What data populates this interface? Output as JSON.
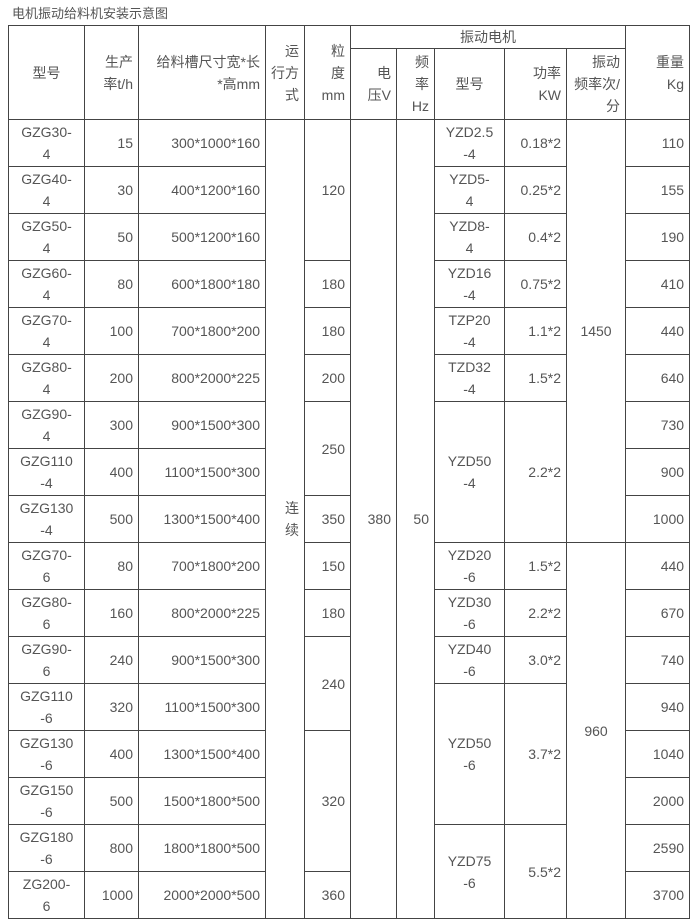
{
  "title": "电机振动给料机安装示意图",
  "header": {
    "model": "型号",
    "capacity": "生产\n率t/h",
    "trough_size": "给料槽尺寸宽*长\n*高mm",
    "operation": "运\n行方\n式",
    "granularity": "粒\n度mm",
    "motor_group": "振动电机",
    "voltage": "电\n压V",
    "frequency": "频\n率Hz",
    "motor_model": "型号",
    "power": "功率\nKW",
    "vib_freq": "振动\n频率次/\n分",
    "weight": "重量\nKg"
  },
  "rows": [
    {
      "model": "GZG30-\n4",
      "capacity": "15",
      "trough_size": "300*1000*160",
      "weight": "110"
    },
    {
      "model": "GZG40-\n4",
      "capacity": "30",
      "trough_size": "400*1200*160",
      "weight": "155"
    },
    {
      "model": "GZG50-\n4",
      "capacity": "50",
      "trough_size": "500*1200*160",
      "weight": "190"
    },
    {
      "model": "GZG60-\n4",
      "capacity": "80",
      "trough_size": "600*1800*180",
      "weight": "410"
    },
    {
      "model": "GZG70-\n4",
      "capacity": "100",
      "trough_size": "700*1800*200",
      "weight": "440"
    },
    {
      "model": "GZG80-\n4",
      "capacity": "200",
      "trough_size": "800*2000*225",
      "weight": "640"
    },
    {
      "model": "GZG90-\n4",
      "capacity": "300",
      "trough_size": "900*1500*300",
      "weight": "730"
    },
    {
      "model": "GZG110\n-4",
      "capacity": "400",
      "trough_size": "1100*1500*300",
      "weight": "900"
    },
    {
      "model": "GZG130\n-4",
      "capacity": "500",
      "trough_size": "1300*1500*400",
      "weight": "1000"
    },
    {
      "model": "GZG70-\n6",
      "capacity": "80",
      "trough_size": "700*1800*200",
      "weight": "440"
    },
    {
      "model": "GZG80-\n6",
      "capacity": "160",
      "trough_size": "800*2000*225",
      "weight": "670"
    },
    {
      "model": "GZG90-\n6",
      "capacity": "240",
      "trough_size": "900*1500*300",
      "weight": "740"
    },
    {
      "model": "GZG110\n-6",
      "capacity": "320",
      "trough_size": "1100*1500*300",
      "weight": "940"
    },
    {
      "model": "GZG130\n-6",
      "capacity": "400",
      "trough_size": "1300*1500*400",
      "weight": "1040"
    },
    {
      "model": "GZG150\n-6",
      "capacity": "500",
      "trough_size": "1500*1800*500",
      "weight": "2000"
    },
    {
      "model": "GZG180\n-6",
      "capacity": "800",
      "trough_size": "1800*1800*500",
      "weight": "2590"
    },
    {
      "model": "ZG200-\n6",
      "capacity": "1000",
      "trough_size": "2000*2000*500",
      "weight": "3700"
    }
  ],
  "operation": {
    "value": "连\n续",
    "span": 17
  },
  "voltage": {
    "value": "380",
    "span": 17
  },
  "frequency": {
    "value": "50",
    "span": 17
  },
  "granularity": [
    {
      "value": "120",
      "span": 3
    },
    {
      "value": "180",
      "span": 1
    },
    {
      "value": "180",
      "span": 1
    },
    {
      "value": "200",
      "span": 1
    },
    {
      "value": "250",
      "span": 2
    },
    {
      "value": "350",
      "span": 1
    },
    {
      "value": "150",
      "span": 1
    },
    {
      "value": "180",
      "span": 1
    },
    {
      "value": "240",
      "span": 2
    },
    {
      "value": "320",
      "span": 3
    },
    {
      "value": "360",
      "span": 1
    }
  ],
  "motor_model": [
    {
      "value": "YZD2.5\n-4",
      "span": 1
    },
    {
      "value": "YZD5-\n4",
      "span": 1
    },
    {
      "value": "YZD8-\n4",
      "span": 1
    },
    {
      "value": "YZD16\n-4",
      "span": 1
    },
    {
      "value": "TZP20\n-4",
      "span": 1
    },
    {
      "value": "TZD32\n-4",
      "span": 1
    },
    {
      "value": "YZD50\n-4",
      "span": 3
    },
    {
      "value": "YZD20\n-6",
      "span": 1
    },
    {
      "value": "YZD30\n-6",
      "span": 1
    },
    {
      "value": "YZD40\n-6",
      "span": 1
    },
    {
      "value": "YZD50\n-6",
      "span": 3
    },
    {
      "value": "YZD75\n-6",
      "span": 2
    }
  ],
  "power": [
    {
      "value": "0.18*2",
      "span": 1
    },
    {
      "value": "0.25*2",
      "span": 1
    },
    {
      "value": "0.4*2",
      "span": 1
    },
    {
      "value": "0.75*2",
      "span": 1
    },
    {
      "value": "1.1*2",
      "span": 1
    },
    {
      "value": "1.5*2",
      "span": 1
    },
    {
      "value": "2.2*2",
      "span": 3
    },
    {
      "value": "1.5*2",
      "span": 1
    },
    {
      "value": "2.2*2",
      "span": 1
    },
    {
      "value": "3.0*2",
      "span": 1
    },
    {
      "value": "3.7*2",
      "span": 3
    },
    {
      "value": "5.5*2",
      "span": 2
    }
  ],
  "vib_freq": [
    {
      "value": "1450",
      "span": 9
    },
    {
      "value": "960",
      "span": 8
    }
  ]
}
